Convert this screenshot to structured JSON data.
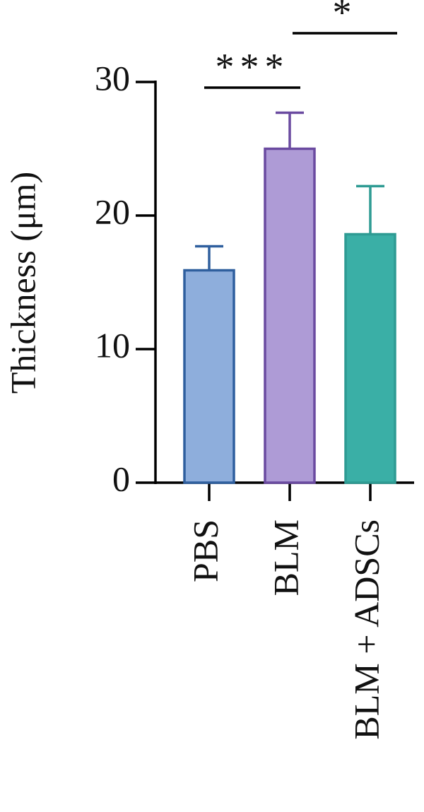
{
  "chart_data": {
    "type": "bar",
    "y_label": "Thickness (μm)",
    "categories": [
      "PBS",
      "BLM",
      "BLM + ADSCs"
    ],
    "values": [
      15.9,
      25.0,
      18.6
    ],
    "errors": [
      1.8,
      2.7,
      3.6
    ],
    "colors": [
      "#8eaedc",
      "#ae9bd6",
      "#3aafa6"
    ],
    "edgecolors": [
      "#2f5f9e",
      "#6a4aa0",
      "#2e9b93"
    ],
    "ylim": [
      0,
      30
    ],
    "yticks": [
      0,
      10,
      20,
      30
    ],
    "annotations": [
      "***",
      "*"
    ]
  }
}
